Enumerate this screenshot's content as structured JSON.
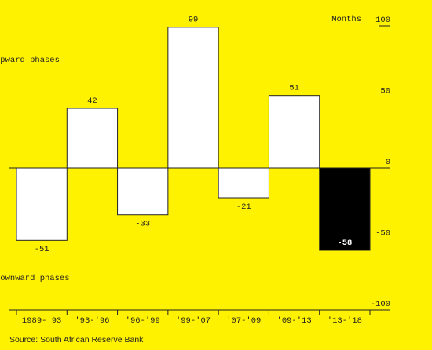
{
  "chart_data": {
    "type": "bar",
    "y_label": "Months",
    "annotations": [
      "Upward phases",
      "Downward phases"
    ],
    "source": "Source: South African Reserve Bank",
    "categories": [
      "1989-'93",
      "'93-'96",
      "'96-'99",
      "'99-'07",
      "'07-'09",
      "'09-'13",
      "'13-'18"
    ],
    "values": [
      -51,
      42,
      -33,
      99,
      -21,
      51,
      -58
    ],
    "colors": [
      "#ffffff",
      "#ffffff",
      "#ffffff",
      "#ffffff",
      "#ffffff",
      "#ffffff",
      "#000000"
    ],
    "ylim": [
      -100,
      100
    ],
    "yticks": [
      100,
      50,
      0,
      -50,
      -100
    ]
  }
}
